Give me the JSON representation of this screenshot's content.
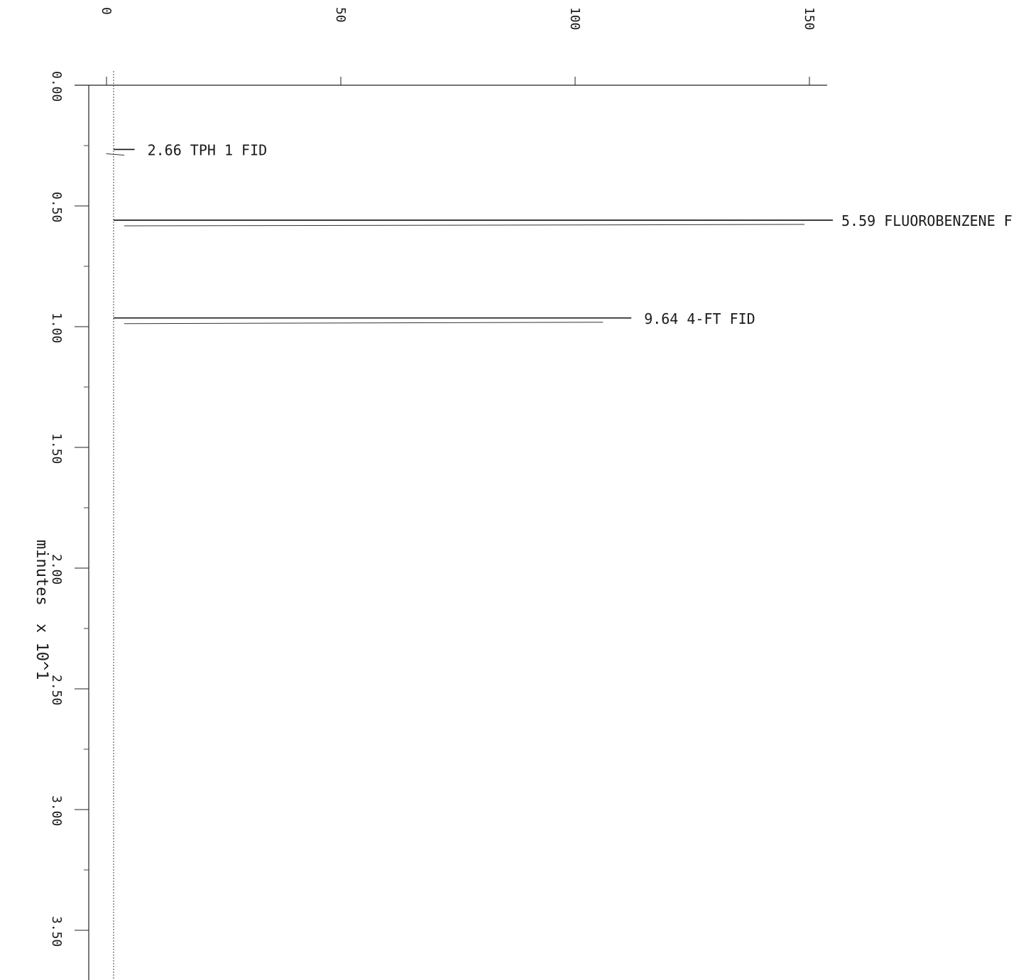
{
  "chart_data": {
    "type": "line",
    "orientation": "rotated-90",
    "title": "",
    "ylabel": "minutes",
    "ylabel_multiplier": "x 10^1",
    "ylim": [
      0.0,
      3.6
    ],
    "y_ticks": [
      0.0,
      0.5,
      1.0,
      1.5,
      2.0,
      2.5,
      3.0,
      3.5
    ],
    "y_tick_labels": [
      "0.00",
      "0.50",
      "1.00",
      "1.50",
      "2.00",
      "2.50",
      "3.00",
      "3.50"
    ],
    "x_ticks": [
      0,
      50,
      100,
      150
    ],
    "x_tick_labels": [
      "0",
      "50",
      "100",
      "150"
    ],
    "xlim": [
      0,
      150
    ],
    "grid": false,
    "series": [
      {
        "points": [
          {
            "y": 0.0,
            "x": 0
          },
          {
            "y": 0.16,
            "x": 0.5
          },
          {
            "y": 0.28,
            "x": 1
          },
          {
            "y": 0.55,
            "x": 170
          },
          {
            "y": 0.59,
            "x": 2
          },
          {
            "y": 0.96,
            "x": 112
          },
          {
            "y": 1.0,
            "x": 1.5
          },
          {
            "y": 2.58,
            "x": 1
          },
          {
            "y": 3.6,
            "x": 0
          }
        ]
      }
    ],
    "peaks": [
      {
        "time": 0.266,
        "label": "2.66 TPH 1 FID"
      },
      {
        "time": 0.559,
        "label": "5.59 FLUOROBENZENE F"
      },
      {
        "time": 0.964,
        "label": "9.64 4-FT FID"
      }
    ]
  }
}
